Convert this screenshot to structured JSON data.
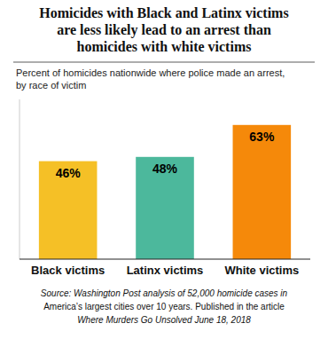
{
  "chart_data": {
    "type": "bar",
    "title": "Homicides with Black and Latinx victims\nare less likely lead to an arrest than\nhomicides with white victims",
    "subtitle": "Percent of homicides nationwide where police made an arrest,\nby race of victim",
    "source": "Source: Washington Post analysis of 52,000 homicide cases in\nAmerica’s largest cities over 10 years. Published in the article\nWhere Murders Go Unsolved June 18, 2018",
    "categories": [
      "Black victims",
      "Latinx victims",
      "White victims"
    ],
    "values": [
      46,
      48,
      63
    ],
    "value_labels": [
      "46%",
      "48%",
      "63%"
    ],
    "colors": [
      "#F5C026",
      "#4CB89C",
      "#F5890A"
    ],
    "ylim": [
      0,
      75
    ],
    "data_labels": true,
    "tick_labels": "x"
  }
}
